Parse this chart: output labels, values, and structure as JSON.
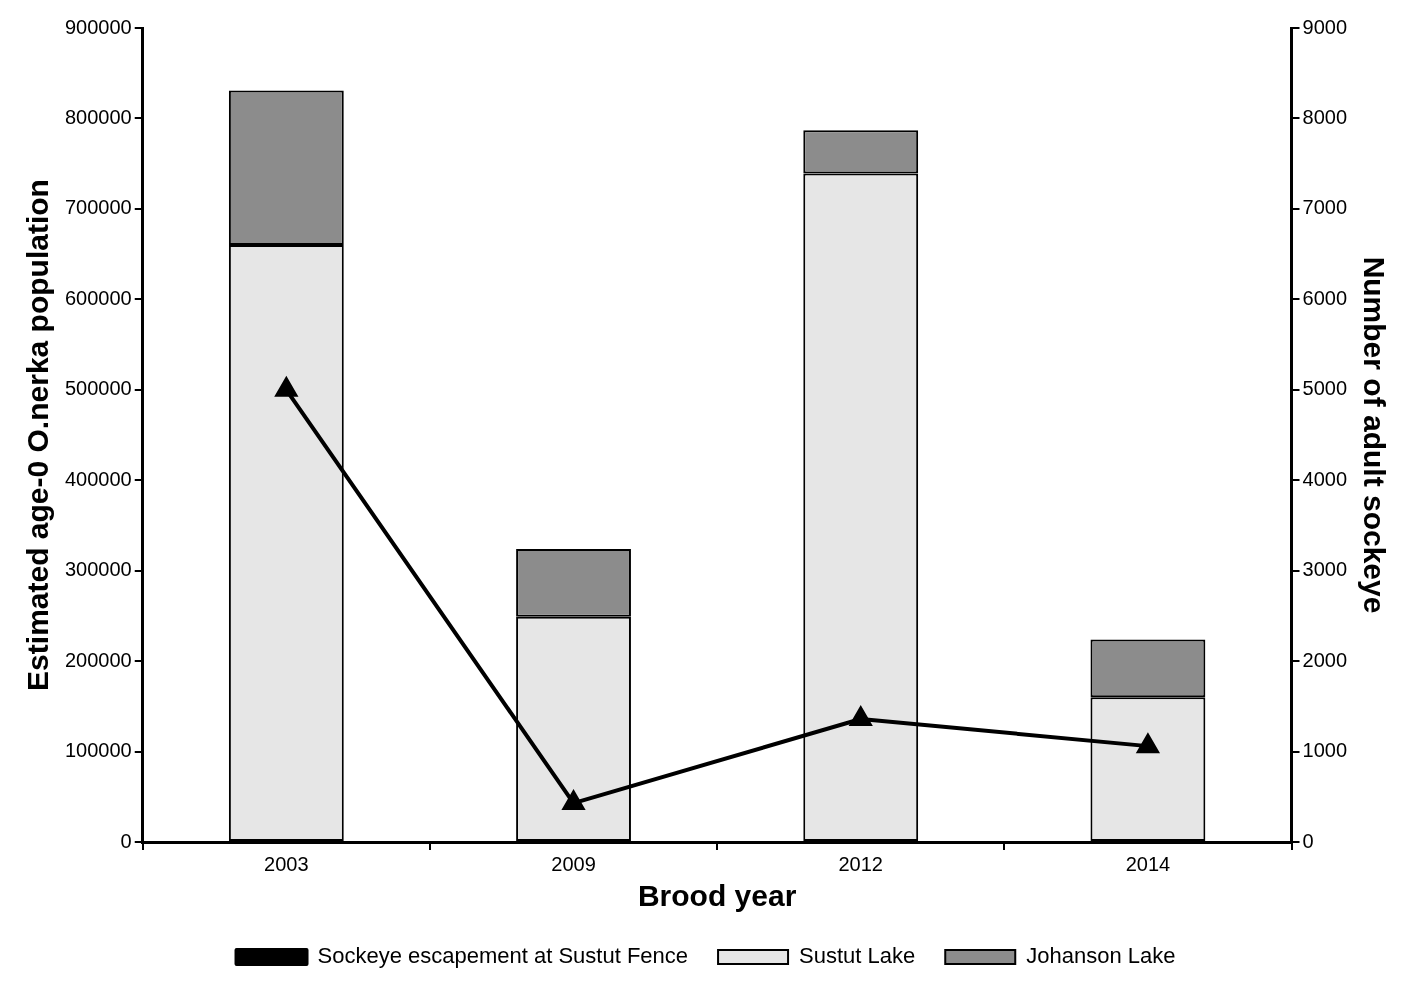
{
  "chart_data": {
    "type": "bar",
    "stacked": true,
    "xlabel": "Brood year",
    "ylabel": "Estimated age-0 O.nerka population",
    "y2label": "Number of adult sockeye",
    "categories": [
      "2003",
      "2009",
      "2012",
      "2014"
    ],
    "series": [
      {
        "name": "Sustut Lake",
        "color": "#e6e6e6",
        "values": [
          660000,
          249000,
          739000,
          160000
        ]
      },
      {
        "name": "Johanson Lake",
        "color": "#8c8c8c",
        "values": [
          171000,
          75000,
          48000,
          64000
        ]
      },
      {
        "name": "Sockeye escapement at Sustut Fence",
        "type": "line",
        "axis": "y2",
        "color": "#000000",
        "marker": "triangle",
        "values": [
          5000,
          430,
          1360,
          1060
        ]
      }
    ],
    "ylim": [
      0,
      900000
    ],
    "yticks": [
      0,
      100000,
      200000,
      300000,
      400000,
      500000,
      600000,
      700000,
      800000,
      900000
    ],
    "y2lim": [
      0,
      9000
    ],
    "y2ticks": [
      0,
      1000,
      2000,
      3000,
      4000,
      5000,
      6000,
      7000,
      8000,
      9000
    ],
    "legend": "bottom"
  }
}
